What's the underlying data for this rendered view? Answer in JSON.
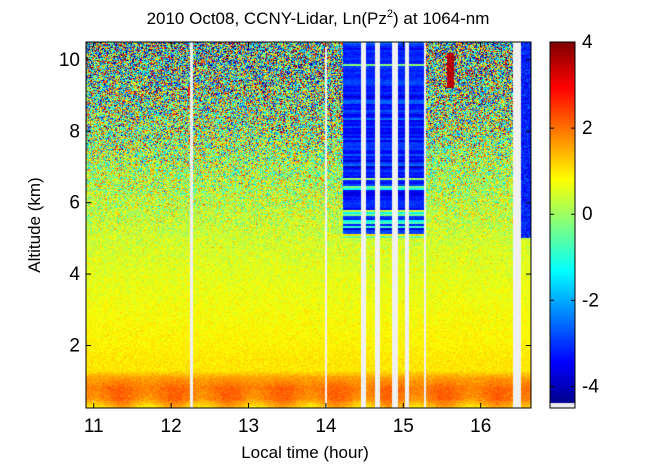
{
  "chart_data": {
    "type": "heatmap",
    "title_main": "2010 Oct08, CCNY-Lidar, Ln(Pz",
    "title_sup": "2",
    "title_end": ") at 1064-nm",
    "xlabel": "Local time (hour)",
    "ylabel": "Altitude (km)",
    "xlim": [
      10.9,
      16.65
    ],
    "ylim": [
      0.25,
      10.5
    ],
    "xticks": [
      {
        "v": 11,
        "label": "11"
      },
      {
        "v": 12,
        "label": "12"
      },
      {
        "v": 13,
        "label": "13"
      },
      {
        "v": 14,
        "label": "14"
      },
      {
        "v": 15,
        "label": "15"
      },
      {
        "v": 16,
        "label": "16"
      }
    ],
    "yticks": [
      {
        "v": 2,
        "label": "2"
      },
      {
        "v": 4,
        "label": "4"
      },
      {
        "v": 6,
        "label": "6"
      },
      {
        "v": 8,
        "label": "8"
      },
      {
        "v": 10,
        "label": "10"
      }
    ],
    "colorbar": {
      "clim": [
        -4.5,
        4
      ],
      "ticks": [
        {
          "v": 4,
          "label": "4"
        },
        {
          "v": 2,
          "label": "2"
        },
        {
          "v": 0,
          "label": "0"
        },
        {
          "v": -2,
          "label": "-2"
        },
        {
          "v": -4,
          "label": "-4"
        }
      ]
    },
    "data_gaps_hours": [
      [
        12.25,
        12.28
      ],
      [
        13.99,
        14.01
      ],
      [
        14.45,
        14.52
      ],
      [
        14.63,
        14.7
      ],
      [
        14.86,
        14.93
      ],
      [
        15.02,
        15.08
      ],
      [
        15.27,
        15.29
      ],
      [
        16.42,
        16.52
      ]
    ],
    "noisy_block_hours": [
      14.22,
      15.27
    ],
    "cloud_patches": [
      {
        "x0": 15.56,
        "x1": 15.66,
        "y0": 9.2,
        "y1": 10.2,
        "value": 3.6
      },
      {
        "x0": 12.22,
        "x1": 12.25,
        "y0": 9.0,
        "y1": 9.25,
        "value": 2.5
      }
    ],
    "field_profile": {
      "altitude_km": [
        0.25,
        0.5,
        0.8,
        1.1,
        1.3,
        1.6,
        2.0,
        3.0,
        4.0,
        5.0,
        6.0,
        7.0,
        8.0,
        9.0,
        10.0,
        10.5
      ],
      "ln_pz2": [
        1.2,
        1.9,
        2.0,
        1.6,
        1.0,
        1.0,
        0.9,
        0.75,
        0.6,
        0.45,
        0.3,
        0.15,
        0.0,
        -0.2,
        -0.5,
        -0.6
      ],
      "noise_std": [
        0.15,
        0.15,
        0.15,
        0.15,
        0.15,
        0.15,
        0.15,
        0.2,
        0.25,
        0.4,
        0.8,
        1.2,
        1.8,
        2.3,
        2.6,
        2.8
      ]
    }
  }
}
